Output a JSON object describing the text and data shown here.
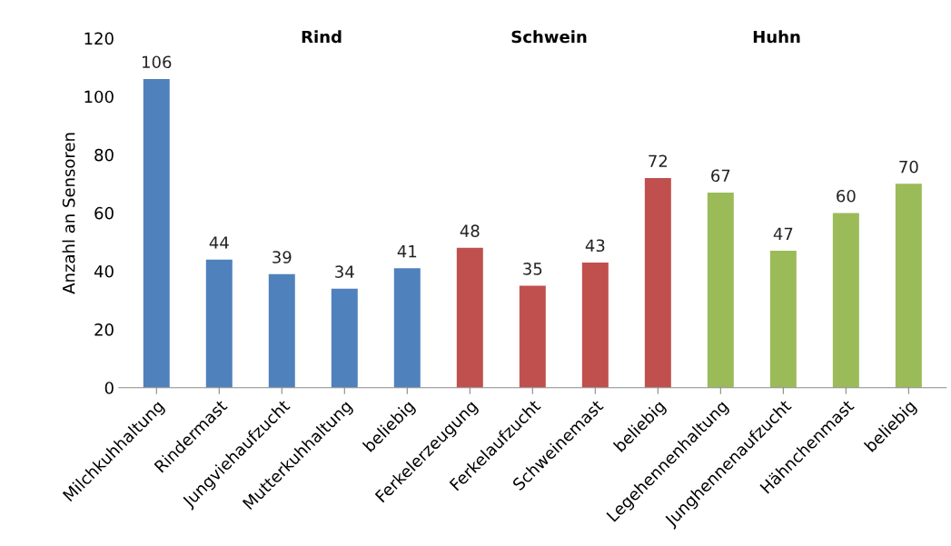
{
  "chart_data": {
    "type": "bar",
    "ylabel": "Anzahl an Sensoren",
    "categories": [
      "Milchkuhhaltung",
      "Rindermast",
      "Jungviehaufzucht",
      "Mutterkuhhaltung",
      "beliebig",
      "Ferkelerzeugung",
      "Ferkelaufzucht",
      "Schweinemast",
      "beliebig",
      "Legehennenhaltung",
      "Junghennenaufzucht",
      "Hähnchenmast",
      "beliebig"
    ],
    "values": [
      106,
      44,
      39,
      34,
      41,
      48,
      35,
      43,
      72,
      67,
      47,
      60,
      70
    ],
    "colors": [
      "#4f81bd",
      "#4f81bd",
      "#4f81bd",
      "#4f81bd",
      "#4f81bd",
      "#c0504d",
      "#c0504d",
      "#c0504d",
      "#c0504d",
      "#9bbb59",
      "#9bbb59",
      "#9bbb59",
      "#9bbb59"
    ],
    "ylim": [
      0,
      120
    ],
    "yticks": [
      0,
      20,
      40,
      60,
      80,
      100,
      120
    ],
    "annotations": [
      "Rind",
      "Schwein",
      "Huhn"
    ],
    "data_labels": true
  }
}
